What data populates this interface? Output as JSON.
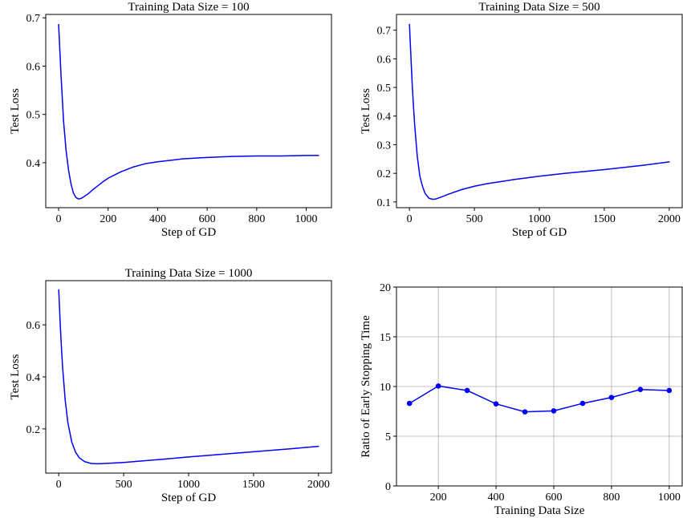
{
  "chart_data": [
    {
      "type": "line",
      "title": "Training Data Size = 100",
      "xlabel": "Step of GD",
      "ylabel": "Test Loss",
      "xlim": [
        -52,
        1102
      ],
      "ylim": [
        0.307,
        0.707
      ],
      "xticks": [
        0,
        200,
        400,
        600,
        800,
        1000
      ],
      "yticks": [
        0.4,
        0.5,
        0.6,
        0.7
      ],
      "grid": false,
      "series": [
        {
          "color": "#0000ff",
          "x": [
            0,
            10,
            20,
            30,
            40,
            50,
            60,
            70,
            80,
            90,
            100,
            120,
            140,
            160,
            180,
            200,
            250,
            300,
            350,
            400,
            450,
            500,
            600,
            700,
            800,
            900,
            1000,
            1050
          ],
          "y": [
            0.686,
            0.578,
            0.486,
            0.426,
            0.385,
            0.356,
            0.337,
            0.328,
            0.325,
            0.326,
            0.329,
            0.336,
            0.345,
            0.353,
            0.361,
            0.368,
            0.381,
            0.391,
            0.398,
            0.402,
            0.405,
            0.408,
            0.411,
            0.413,
            0.414,
            0.414,
            0.415,
            0.415
          ]
        }
      ]
    },
    {
      "type": "line",
      "title": "Training Data Size = 500",
      "xlabel": "Step of GD",
      "ylabel": "Test Loss",
      "xlim": [
        -100,
        2100
      ],
      "ylim": [
        0.08,
        0.755
      ],
      "xticks": [
        0,
        500,
        1000,
        1500,
        2000
      ],
      "yticks": [
        0.1,
        0.2,
        0.3,
        0.4,
        0.5,
        0.6,
        0.7
      ],
      "grid": false,
      "series": [
        {
          "color": "#0000ff",
          "x": [
            0,
            10,
            20,
            30,
            40,
            60,
            80,
            100,
            120,
            150,
            180,
            200,
            250,
            300,
            400,
            500,
            600,
            800,
            1000,
            1200,
            1500,
            1800,
            2000
          ],
          "y": [
            0.72,
            0.62,
            0.52,
            0.44,
            0.37,
            0.26,
            0.19,
            0.155,
            0.13,
            0.113,
            0.109,
            0.11,
            0.118,
            0.127,
            0.143,
            0.155,
            0.164,
            0.178,
            0.19,
            0.2,
            0.213,
            0.228,
            0.24
          ]
        }
      ]
    },
    {
      "type": "line",
      "title": "Training Data Size = 1000",
      "xlabel": "Step of GD",
      "ylabel": "Test Loss",
      "xlim": [
        -100,
        2100
      ],
      "ylim": [
        0.03,
        0.77
      ],
      "xticks": [
        0,
        500,
        1000,
        1500,
        2000
      ],
      "yticks": [
        0.2,
        0.4,
        0.6
      ],
      "grid": false,
      "series": [
        {
          "color": "#0000ff",
          "x": [
            0,
            10,
            20,
            30,
            50,
            70,
            100,
            130,
            160,
            200,
            250,
            300,
            400,
            500,
            600,
            800,
            1000,
            1200,
            1500,
            1800,
            2000
          ],
          "y": [
            0.735,
            0.62,
            0.52,
            0.435,
            0.31,
            0.225,
            0.15,
            0.11,
            0.088,
            0.074,
            0.067,
            0.066,
            0.068,
            0.071,
            0.075,
            0.083,
            0.092,
            0.1,
            0.112,
            0.124,
            0.133
          ]
        }
      ]
    },
    {
      "type": "line",
      "title": "",
      "xlabel": "Training Data Size",
      "ylabel": "Ratio of Early Stopping Time",
      "xlim": [
        55,
        1045
      ],
      "ylim": [
        0,
        20
      ],
      "xticks": [
        200,
        400,
        600,
        800,
        1000
      ],
      "yticks": [
        0,
        5,
        10,
        15,
        20
      ],
      "grid": true,
      "markers": true,
      "series": [
        {
          "color": "#0000ff",
          "x": [
            100,
            200,
            300,
            400,
            500,
            600,
            700,
            800,
            900,
            1000
          ],
          "y": [
            8.3,
            10.05,
            9.6,
            8.25,
            7.45,
            7.55,
            8.3,
            8.9,
            9.7,
            9.6
          ]
        }
      ]
    }
  ]
}
